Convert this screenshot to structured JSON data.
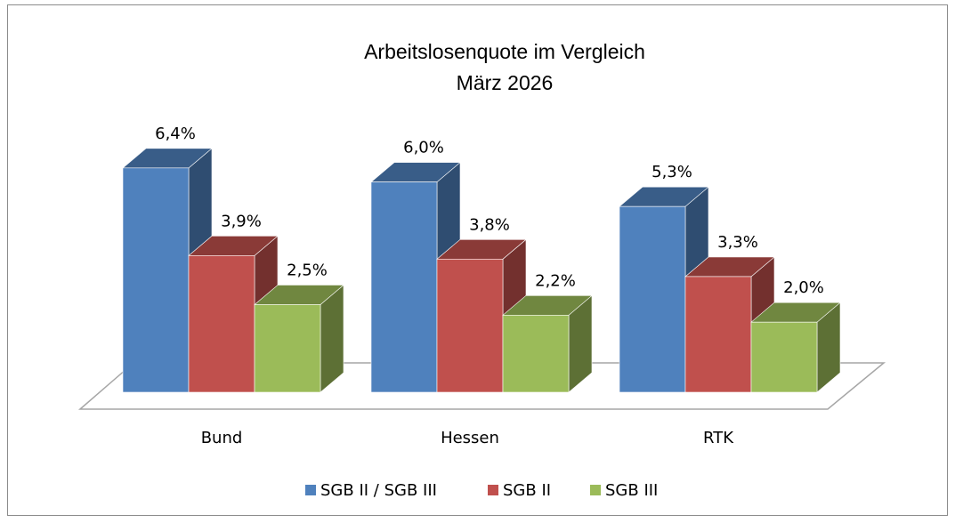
{
  "chart_data": {
    "type": "bar3d",
    "title": "Arbeitslosenquote im Vergleich",
    "subtitle": "März 2026",
    "categories": [
      "Bund",
      "Hessen",
      "RTK"
    ],
    "series": [
      {
        "name": "SGB II / SGB III",
        "color": "#4f81bd",
        "values": [
          6.4,
          6.0,
          5.3
        ],
        "value_labels": [
          "6,4%",
          "6,0%",
          "5,3%"
        ]
      },
      {
        "name": "SGB II",
        "color": "#c0504d",
        "values": [
          3.9,
          3.8,
          3.3
        ],
        "value_labels": [
          "3,9%",
          "3,8%",
          "3,3%"
        ]
      },
      {
        "name": "SGB III",
        "color": "#9bbb59",
        "values": [
          2.5,
          2.2,
          2.0
        ],
        "value_labels": [
          "2,5%",
          "2,2%",
          "2,0%"
        ]
      }
    ],
    "legend": "bottom"
  }
}
